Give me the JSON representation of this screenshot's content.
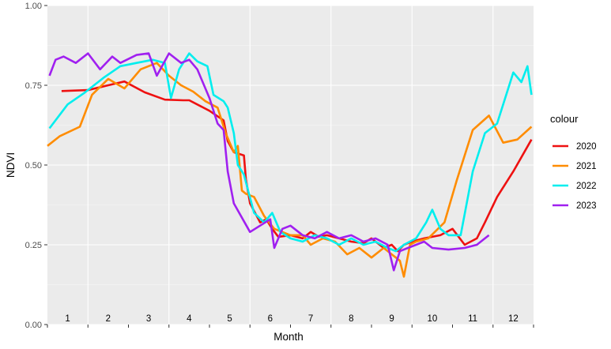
{
  "chart_data": {
    "type": "line",
    "xlabel": "Month",
    "ylabel": "NDVI",
    "xlim": [
      0.5,
      12.5
    ],
    "ylim": [
      0,
      1
    ],
    "yticks": [
      "0.00",
      "0.25",
      "0.50",
      "0.75",
      "1.00"
    ],
    "month_labels": [
      "1",
      "2",
      "3",
      "4",
      "5",
      "6",
      "7",
      "8",
      "9",
      "10",
      "11",
      "12"
    ],
    "grid": true,
    "legend_title": "colour",
    "legend_position": "right",
    "series": [
      {
        "name": "2020",
        "color": "#ee1111",
        "x": [
          0.85,
          1.5,
          2.0,
          2.4,
          2.9,
          3.4,
          3.85,
          4.0,
          4.5,
          4.85,
          4.95,
          5.1,
          5.35,
          5.4,
          5.5,
          5.75,
          5.9,
          6.05,
          6.2,
          6.5,
          6.8,
          7.0,
          7.2,
          7.4,
          7.7,
          8.0,
          8.3,
          8.5,
          8.8,
          9.0,
          9.15,
          9.3,
          9.5,
          9.8,
          10.2,
          10.5,
          10.8,
          11.1,
          11.3,
          11.6,
          12.0,
          12.45
        ],
        "y": [
          0.732,
          0.735,
          0.75,
          0.762,
          0.728,
          0.705,
          0.703,
          0.703,
          0.67,
          0.64,
          0.575,
          0.54,
          0.53,
          0.455,
          0.38,
          0.32,
          0.33,
          0.3,
          0.275,
          0.28,
          0.27,
          0.29,
          0.275,
          0.28,
          0.27,
          0.26,
          0.255,
          0.27,
          0.24,
          0.25,
          0.23,
          0.25,
          0.26,
          0.27,
          0.28,
          0.3,
          0.25,
          0.27,
          0.32,
          0.4,
          0.48,
          0.58
        ]
      },
      {
        "name": "2021",
        "color": "#ff8c00",
        "x": [
          0.5,
          0.8,
          1.3,
          1.6,
          2.0,
          2.4,
          2.8,
          3.2,
          3.5,
          3.8,
          4.1,
          4.4,
          4.7,
          4.9,
          5.1,
          5.2,
          5.3,
          5.4,
          5.6,
          5.85,
          6.1,
          6.3,
          6.5,
          6.8,
          7.0,
          7.3,
          7.6,
          7.9,
          8.2,
          8.5,
          8.8,
          9.0,
          9.2,
          9.3,
          9.45,
          9.6,
          9.9,
          10.3,
          10.6,
          11.0,
          11.4,
          11.75,
          12.1,
          12.45
        ],
        "y": [
          0.56,
          0.59,
          0.62,
          0.72,
          0.77,
          0.74,
          0.8,
          0.82,
          0.78,
          0.75,
          0.73,
          0.7,
          0.68,
          0.6,
          0.54,
          0.56,
          0.42,
          0.41,
          0.4,
          0.34,
          0.3,
          0.29,
          0.28,
          0.28,
          0.25,
          0.27,
          0.26,
          0.22,
          0.24,
          0.21,
          0.24,
          0.22,
          0.2,
          0.15,
          0.25,
          0.26,
          0.27,
          0.32,
          0.45,
          0.61,
          0.655,
          0.57,
          0.58,
          0.62
        ]
      },
      {
        "name": "2022",
        "color": "#00eeee",
        "x": [
          0.55,
          1.0,
          1.4,
          1.9,
          2.3,
          2.7,
          3.1,
          3.4,
          3.55,
          3.75,
          4.0,
          4.2,
          4.45,
          4.6,
          4.85,
          4.95,
          5.1,
          5.2,
          5.35,
          5.6,
          5.85,
          6.05,
          6.25,
          6.5,
          6.8,
          7.1,
          7.4,
          7.7,
          8.0,
          8.3,
          8.6,
          8.9,
          9.1,
          9.3,
          9.6,
          9.85,
          10.0,
          10.2,
          10.4,
          10.7,
          11.0,
          11.3,
          11.6,
          12.0,
          12.2,
          12.35,
          12.45
        ],
        "y": [
          0.615,
          0.69,
          0.725,
          0.775,
          0.81,
          0.82,
          0.83,
          0.82,
          0.71,
          0.8,
          0.85,
          0.825,
          0.81,
          0.72,
          0.7,
          0.68,
          0.6,
          0.5,
          0.47,
          0.35,
          0.32,
          0.35,
          0.29,
          0.27,
          0.26,
          0.28,
          0.27,
          0.25,
          0.27,
          0.25,
          0.26,
          0.24,
          0.23,
          0.25,
          0.27,
          0.32,
          0.36,
          0.3,
          0.28,
          0.28,
          0.48,
          0.6,
          0.63,
          0.79,
          0.76,
          0.81,
          0.72
        ]
      },
      {
        "name": "2023",
        "color": "#a020f0",
        "x": [
          0.55,
          0.7,
          0.9,
          1.2,
          1.5,
          1.8,
          2.1,
          2.3,
          2.7,
          3.0,
          3.2,
          3.5,
          3.8,
          4.0,
          4.2,
          4.5,
          4.7,
          4.85,
          4.95,
          5.1,
          5.5,
          6.0,
          6.1,
          6.3,
          6.5,
          6.8,
          7.1,
          7.4,
          7.7,
          8.0,
          8.3,
          8.6,
          8.9,
          9.05,
          9.2,
          9.4,
          9.6,
          9.8,
          10.0,
          10.4,
          10.8,
          11.1,
          11.3,
          11.4
        ],
        "y": [
          0.78,
          0.83,
          0.84,
          0.82,
          0.85,
          0.8,
          0.84,
          0.82,
          0.845,
          0.85,
          0.78,
          0.85,
          0.82,
          0.83,
          0.8,
          0.71,
          0.63,
          0.61,
          0.48,
          0.38,
          0.29,
          0.33,
          0.24,
          0.3,
          0.31,
          0.28,
          0.27,
          0.29,
          0.27,
          0.28,
          0.26,
          0.27,
          0.25,
          0.17,
          0.23,
          0.24,
          0.25,
          0.26,
          0.24,
          0.235,
          0.24,
          0.25,
          0.27,
          0.28
        ]
      }
    ]
  }
}
